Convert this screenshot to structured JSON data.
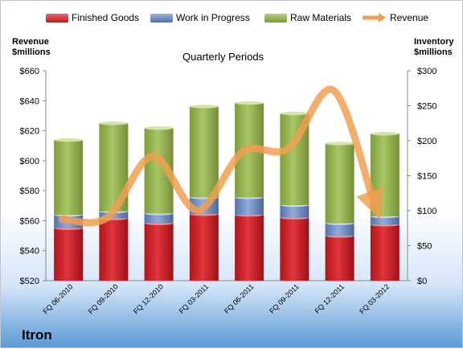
{
  "header": {
    "left_axis_title": [
      "Revenue",
      "$millions"
    ],
    "right_axis_title": [
      "Inventory",
      "$millions"
    ],
    "chart_title": "Quarterly Periods",
    "company": "Itron"
  },
  "colors": {
    "finished": "#d0232a",
    "wip": "#6f8fc7",
    "raw": "#9bbb59",
    "revenue": "#f0a050"
  },
  "chart_data": {
    "type": "bar",
    "title": "Quarterly Periods",
    "categories": [
      "FQ 06-2010",
      "FQ 09-2010",
      "FQ 12-2010",
      "FQ 03-2011",
      "FQ 06-2011",
      "FQ 09-2011",
      "FQ 12-2011",
      "FQ 03-2012"
    ],
    "series": [
      {
        "name": "Finished Goods",
        "axis": "right",
        "stack": true,
        "values": [
          75,
          89,
          82,
          95,
          94,
          90,
          64,
          80
        ]
      },
      {
        "name": "Work in Progress",
        "axis": "right",
        "stack": true,
        "values": [
          19,
          10,
          14,
          24,
          25,
          18,
          18,
          12
        ]
      },
      {
        "name": "Raw Materials",
        "axis": "right",
        "stack": true,
        "values": [
          107,
          126,
          122,
          130,
          135,
          131,
          114,
          118
        ]
      },
      {
        "name": "Revenue",
        "axis": "left",
        "type": "line",
        "values": [
          561,
          562,
          603,
          567,
          606,
          608,
          647,
          565
        ]
      }
    ],
    "left_axis": {
      "label": "Revenue $millions",
      "min": 520,
      "max": 660,
      "ticks": [
        "$520",
        "$540",
        "$560",
        "$580",
        "$600",
        "$620",
        "$640",
        "$660"
      ]
    },
    "right_axis": {
      "label": "Inventory $millions",
      "min": 0,
      "max": 300,
      "ticks": [
        "$0",
        "$50",
        "$100",
        "$150",
        "$200",
        "$250",
        "$300"
      ]
    },
    "legend": [
      "Finished Goods",
      "Work in Progress",
      "Raw Materials",
      "Revenue"
    ],
    "legend_position": "top",
    "grid": false
  }
}
